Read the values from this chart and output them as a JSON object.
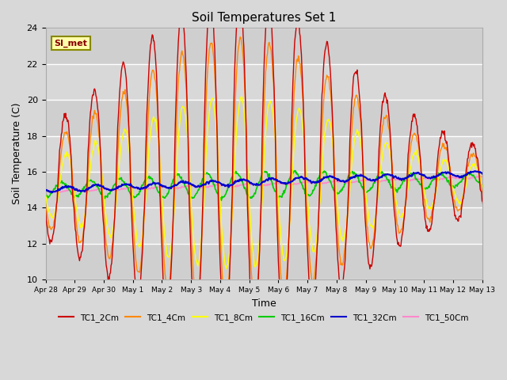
{
  "title": "Soil Temperatures Set 1",
  "xlabel": "Time",
  "ylabel": "Soil Temperature (C)",
  "ylim": [
    10,
    24
  ],
  "yticks": [
    10,
    12,
    14,
    16,
    18,
    20,
    22,
    24
  ],
  "annotation": "SI_met",
  "colors": {
    "TC1_2Cm": "#cc0000",
    "TC1_4Cm": "#ff8800",
    "TC1_8Cm": "#ffff00",
    "TC1_16Cm": "#00cc00",
    "TC1_32Cm": "#0000cc",
    "TC1_50Cm": "#ff88cc"
  },
  "fig_bg": "#e0e0e0",
  "plot_bg": "#d8d8d8",
  "xtick_labels": [
    "Apr 28",
    "Apr 29",
    "Apr 30",
    "May 1",
    "May 2",
    "May 3",
    "May 4",
    "May 5",
    "May 6",
    "May 7",
    "May 8",
    "May 9",
    "May 10",
    "May 11",
    "May 12",
    "May 13"
  ],
  "num_days": 16
}
